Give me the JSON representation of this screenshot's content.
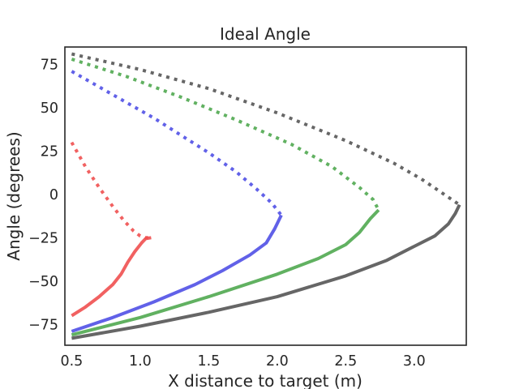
{
  "chart_data": {
    "type": "line",
    "title": "Ideal Angle",
    "xlabel": "X distance to target (m)",
    "ylabel": "Angle (degrees)",
    "xlim": [
      0.45,
      3.38
    ],
    "ylim": [
      -87,
      85
    ],
    "xticks": [
      0.5,
      1.0,
      1.5,
      2.0,
      2.5,
      3.0
    ],
    "xtick_labels": [
      "0.5",
      "1.0",
      "1.5",
      "2.0",
      "2.5",
      "3.0"
    ],
    "yticks": [
      -75,
      -50,
      -25,
      0,
      25,
      50,
      75
    ],
    "ytick_labels": [
      "−75",
      "−50",
      "−25",
      "0",
      "25",
      "50",
      "75"
    ],
    "grid": false,
    "series": [
      {
        "color": "#f05050",
        "style": "solid",
        "points": [
          [
            0.5,
            -70
          ],
          [
            0.6,
            -65
          ],
          [
            0.7,
            -59
          ],
          [
            0.8,
            -52
          ],
          [
            0.86,
            -46
          ],
          [
            0.91,
            -39
          ],
          [
            0.96,
            -33
          ],
          [
            1.01,
            -28
          ],
          [
            1.04,
            -25.5
          ],
          [
            1.08,
            -25
          ]
        ]
      },
      {
        "color": "#f05050",
        "style": "dotted",
        "points": [
          [
            0.5,
            30
          ],
          [
            0.6,
            16
          ],
          [
            0.7,
            4
          ],
          [
            0.8,
            -7
          ],
          [
            0.88,
            -15
          ],
          [
            0.95,
            -21
          ],
          [
            1.0,
            -24
          ],
          [
            1.04,
            -25
          ],
          [
            1.08,
            -25
          ]
        ]
      },
      {
        "color": "#5050e6",
        "style": "solid",
        "points": [
          [
            0.5,
            -79
          ],
          [
            0.8,
            -71
          ],
          [
            1.1,
            -62
          ],
          [
            1.4,
            -52
          ],
          [
            1.6,
            -44
          ],
          [
            1.8,
            -35
          ],
          [
            1.92,
            -28
          ],
          [
            1.98,
            -20
          ],
          [
            2.03,
            -12
          ]
        ]
      },
      {
        "color": "#5050e6",
        "style": "dotted",
        "points": [
          [
            0.5,
            71
          ],
          [
            0.7,
            62
          ],
          [
            0.9,
            53
          ],
          [
            1.1,
            44
          ],
          [
            1.3,
            34
          ],
          [
            1.5,
            24
          ],
          [
            1.7,
            13
          ],
          [
            1.85,
            3
          ],
          [
            1.96,
            -5
          ],
          [
            2.03,
            -12
          ]
        ]
      },
      {
        "color": "#50a850",
        "style": "solid",
        "points": [
          [
            0.5,
            -81
          ],
          [
            1.0,
            -71
          ],
          [
            1.5,
            -59
          ],
          [
            2.0,
            -46
          ],
          [
            2.3,
            -37
          ],
          [
            2.5,
            -29
          ],
          [
            2.6,
            -22
          ],
          [
            2.68,
            -14
          ],
          [
            2.74,
            -9
          ]
        ]
      },
      {
        "color": "#50a850",
        "style": "dotted",
        "points": [
          [
            0.5,
            78
          ],
          [
            0.9,
            68
          ],
          [
            1.3,
            56
          ],
          [
            1.7,
            43
          ],
          [
            2.1,
            29
          ],
          [
            2.4,
            16
          ],
          [
            2.6,
            4
          ],
          [
            2.7,
            -3
          ],
          [
            2.74,
            -9
          ]
        ]
      },
      {
        "color": "#555555",
        "style": "solid",
        "points": [
          [
            0.5,
            -83
          ],
          [
            1.0,
            -76
          ],
          [
            1.5,
            -68
          ],
          [
            2.0,
            -59
          ],
          [
            2.5,
            -47
          ],
          [
            2.8,
            -38
          ],
          [
            3.0,
            -30
          ],
          [
            3.15,
            -24
          ],
          [
            3.25,
            -17
          ],
          [
            3.3,
            -11
          ],
          [
            3.33,
            -6
          ]
        ]
      },
      {
        "color": "#555555",
        "style": "dotted",
        "points": [
          [
            0.5,
            81
          ],
          [
            1.0,
            72
          ],
          [
            1.5,
            61
          ],
          [
            2.0,
            47
          ],
          [
            2.5,
            31
          ],
          [
            2.85,
            18
          ],
          [
            3.05,
            9
          ],
          [
            3.2,
            1
          ],
          [
            3.33,
            -6
          ]
        ]
      }
    ]
  }
}
